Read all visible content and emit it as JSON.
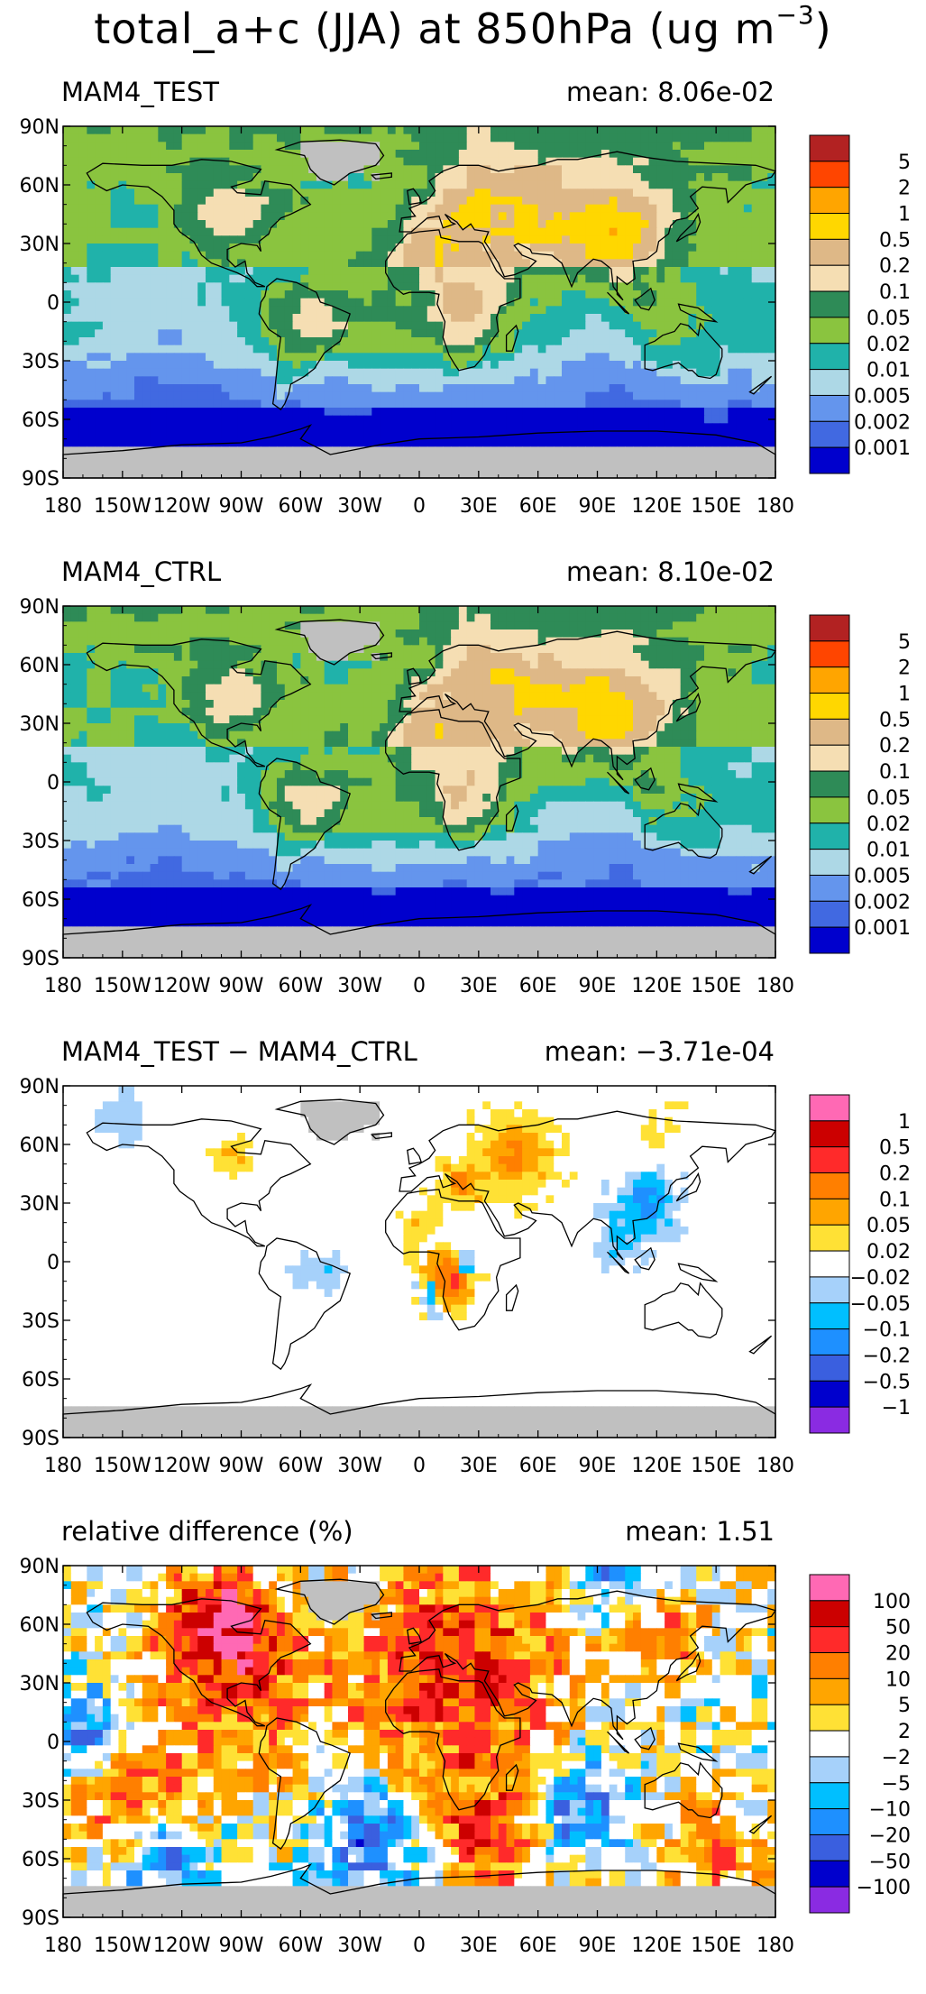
{
  "title": "total_a+c (JJA) at 850hPa (ug m",
  "title_exp": "−3",
  "title_close": ")",
  "chart_data": [
    {
      "type": "heatmap",
      "title": "MAM4_TEST",
      "mean_label": "mean: 8.06e-02",
      "mean": 0.0806,
      "xlim": [
        -180,
        180
      ],
      "ylim": [
        -90,
        90
      ],
      "xticklabels": [
        "180",
        "150W",
        "120W",
        "90W",
        "60W",
        "30W",
        "0",
        "30E",
        "60E",
        "90E",
        "120E",
        "150E",
        "180"
      ],
      "yticklabels": [
        "90N",
        "60N",
        "30N",
        "0",
        "30S",
        "60S",
        "90S"
      ],
      "levels": [
        "5",
        "2",
        "1",
        "0.5",
        "0.2",
        "0.1",
        "0.05",
        "0.02",
        "0.01",
        "0.005",
        "0.002",
        "0.001"
      ],
      "colors": [
        "#b22222",
        "#ff4500",
        "#ffa500",
        "#ffd700",
        "#deb887",
        "#f5deb3",
        "#2e8b57",
        "#8ac43f",
        "#20b2aa",
        "#add8e6",
        "#6495ed",
        "#4169e1",
        "#0000cd"
      ],
      "field": "conc",
      "bias": 0.3,
      "seed": 1
    },
    {
      "type": "heatmap",
      "title": "MAM4_CTRL",
      "mean_label": "mean: 8.10e-02",
      "mean": 0.081,
      "xlim": [
        -180,
        180
      ],
      "ylim": [
        -90,
        90
      ],
      "xticklabels": [
        "180",
        "150W",
        "120W",
        "90W",
        "60W",
        "30W",
        "0",
        "30E",
        "60E",
        "90E",
        "120E",
        "150E",
        "180"
      ],
      "yticklabels": [
        "90N",
        "60N",
        "30N",
        "0",
        "30S",
        "60S",
        "90S"
      ],
      "levels": [
        "5",
        "2",
        "1",
        "0.5",
        "0.2",
        "0.1",
        "0.05",
        "0.02",
        "0.01",
        "0.005",
        "0.002",
        "0.001"
      ],
      "colors": [
        "#b22222",
        "#ff4500",
        "#ffa500",
        "#ffd700",
        "#deb887",
        "#f5deb3",
        "#2e8b57",
        "#8ac43f",
        "#20b2aa",
        "#add8e6",
        "#6495ed",
        "#4169e1",
        "#0000cd"
      ],
      "field": "conc",
      "bias": 0.2,
      "seed": 2
    },
    {
      "type": "heatmap",
      "title": "MAM4_TEST − MAM4_CTRL",
      "mean_label": "mean: −3.71e-04",
      "mean": -0.000371,
      "xlim": [
        -180,
        180
      ],
      "ylim": [
        -90,
        90
      ],
      "xticklabels": [
        "180",
        "150W",
        "120W",
        "90W",
        "60W",
        "30W",
        "0",
        "30E",
        "60E",
        "90E",
        "120E",
        "150E",
        "180"
      ],
      "yticklabels": [
        "90N",
        "60N",
        "30N",
        "0",
        "30S",
        "60S",
        "90S"
      ],
      "levels": [
        "1",
        "0.5",
        "0.2",
        "0.1",
        "0.05",
        "0.02",
        "−0.02",
        "−0.05",
        "−0.1",
        "−0.2",
        "−0.5",
        "−1"
      ],
      "colors": [
        "#ff69b4",
        "#cc0000",
        "#ff2a2a",
        "#ff7f00",
        "#ffa500",
        "#ffe135",
        "#ffffff",
        "#a6d1fa",
        "#00bfff",
        "#1e90ff",
        "#3a5fdf",
        "#0000cd",
        "#8a2be2"
      ],
      "field": "diff",
      "bias": 0,
      "seed": 3
    },
    {
      "type": "heatmap",
      "title": "relative difference (%)",
      "mean_label": "mean:   1.51",
      "mean": 1.51,
      "xlim": [
        -180,
        180
      ],
      "ylim": [
        -90,
        90
      ],
      "xticklabels": [
        "180",
        "150W",
        "120W",
        "90W",
        "60W",
        "30W",
        "0",
        "30E",
        "60E",
        "90E",
        "120E",
        "150E",
        "180"
      ],
      "yticklabels": [
        "90N",
        "60N",
        "30N",
        "0",
        "30S",
        "60S",
        "90S"
      ],
      "levels": [
        "100",
        "50",
        "20",
        "10",
        "5",
        "2",
        "−2",
        "−5",
        "−10",
        "−20",
        "−50",
        "−100"
      ],
      "colors": [
        "#ff69b4",
        "#cc0000",
        "#ff2a2a",
        "#ff7f00",
        "#ffa500",
        "#ffe135",
        "#ffffff",
        "#a6d1fa",
        "#00bfff",
        "#1e90ff",
        "#3a5fdf",
        "#0000cd",
        "#8a2be2"
      ],
      "field": "rel",
      "bias": 0,
      "seed": 4
    }
  ]
}
